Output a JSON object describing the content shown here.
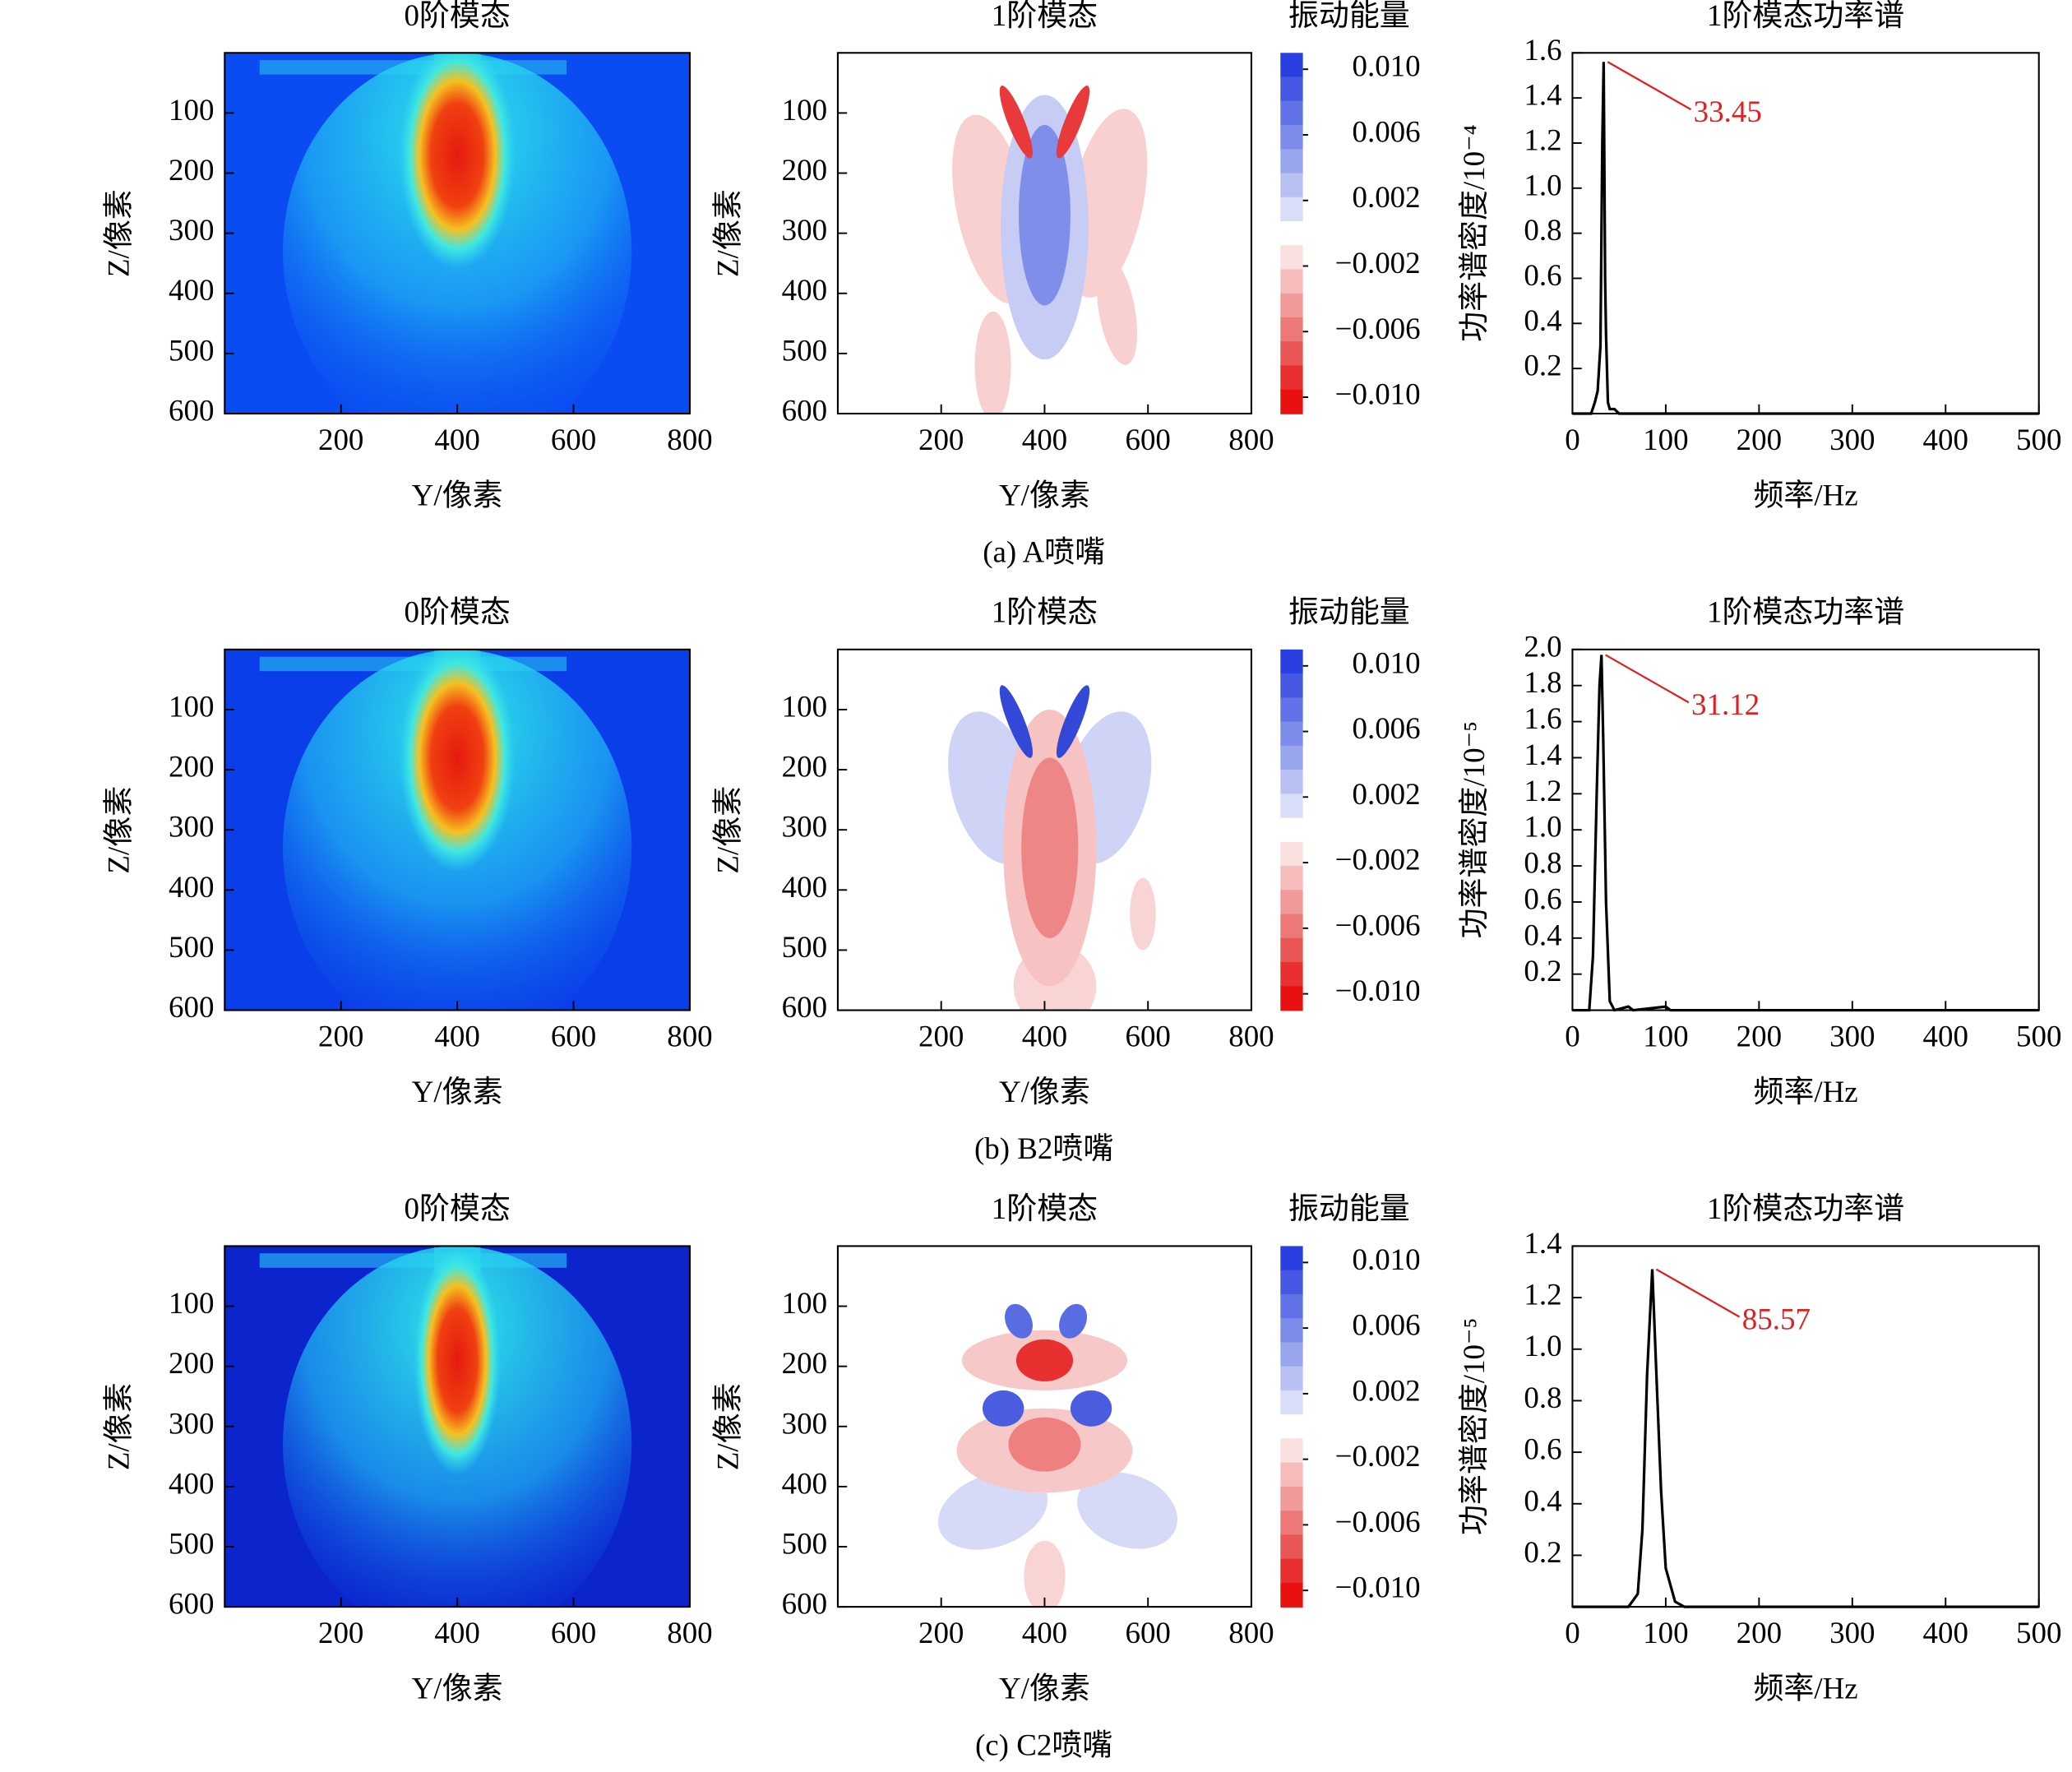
{
  "captions": [
    "(a) A喷嘴",
    "(b) B2喷嘴",
    "(c) C2喷嘴"
  ],
  "chart_data": [
    {
      "type": "heatmap",
      "colormap": "jet",
      "title": "0阶模态",
      "x_label": "Y/像素",
      "y_label": "Z/像素",
      "xlim": [
        0,
        800
      ],
      "ylim": [
        0,
        600
      ],
      "y_inverted": true,
      "xticks": [
        200,
        400,
        600,
        800
      ],
      "yticks": [
        100,
        200,
        300,
        400,
        500,
        600
      ]
    },
    {
      "type": "heatmap",
      "colormap": "bwr",
      "title": "1阶模态",
      "x_label": "Y/像素",
      "y_label": "Z/像素",
      "xlim": [
        0,
        800
      ],
      "ylim": [
        0,
        600
      ],
      "y_inverted": true,
      "xticks": [
        200,
        400,
        600,
        800
      ],
      "yticks": [
        100,
        200,
        300,
        400,
        500,
        600
      ],
      "colorbar_title": "振动能量",
      "colorbar_lim": [
        -0.011,
        0.011
      ],
      "colorbar_ticks": [
        {
          "value": 0.01,
          "label": "0.010"
        },
        0.006,
        0.002,
        {
          "value": -0.002,
          "label": "−0.002"
        },
        {
          "value": -0.006,
          "label": "−0.006"
        },
        {
          "value": -0.01,
          "label": "−0.010"
        }
      ]
    },
    {
      "type": "line",
      "title": "1阶模态功率谱",
      "x_label": "频率/Hz",
      "y_label": "功率谱密度/10⁻⁴",
      "color": "#000000",
      "x": [
        0,
        20,
        24,
        27,
        30,
        32,
        33.45,
        35,
        36,
        38,
        40,
        45,
        50,
        100,
        500
      ],
      "values": [
        0,
        0,
        0.05,
        0.1,
        0.3,
        1.2,
        1.56,
        0.6,
        0.35,
        0.05,
        0.02,
        0.02,
        0,
        0,
        0
      ],
      "xlim": [
        0,
        500
      ],
      "ylim": [
        0,
        1.6
      ],
      "xticks": [
        0,
        100,
        200,
        300,
        400,
        500
      ],
      "yticks": [
        0.2,
        0.4,
        0.6,
        0.8,
        {
          "value": 1.0,
          "label": "1.0"
        },
        1.2,
        1.4,
        1.6
      ],
      "annotation": {
        "x": 33.45,
        "y": 1.56,
        "color": "#e02020"
      }
    },
    {
      "type": "heatmap",
      "colormap": "jet",
      "title": "0阶模态",
      "x_label": "Y/像素",
      "y_label": "Z/像素",
      "xlim": [
        0,
        800
      ],
      "ylim": [
        0,
        600
      ],
      "y_inverted": true,
      "xticks": [
        200,
        400,
        600,
        800
      ],
      "yticks": [
        100,
        200,
        300,
        400,
        500,
        600
      ]
    },
    {
      "type": "heatmap",
      "colormap": "bwr",
      "title": "1阶模态",
      "x_label": "Y/像素",
      "y_label": "Z/像素",
      "xlim": [
        0,
        800
      ],
      "ylim": [
        0,
        600
      ],
      "y_inverted": true,
      "xticks": [
        200,
        400,
        600,
        800
      ],
      "yticks": [
        100,
        200,
        300,
        400,
        500,
        600
      ],
      "colorbar_title": "振动能量",
      "colorbar_lim": [
        -0.011,
        0.011
      ],
      "colorbar_ticks": [
        {
          "value": 0.01,
          "label": "0.010"
        },
        0.006,
        0.002,
        {
          "value": -0.002,
          "label": "−0.002"
        },
        {
          "value": -0.006,
          "label": "−0.006"
        },
        {
          "value": -0.01,
          "label": "−0.010"
        }
      ]
    },
    {
      "type": "line",
      "title": "1阶模态功率谱",
      "x_label": "频率/Hz",
      "y_label": "功率谱密度/10⁻⁵",
      "color": "#000000",
      "x": [
        0,
        18,
        22,
        26,
        29,
        31.12,
        33,
        36,
        40,
        45,
        60,
        65,
        100,
        105,
        500
      ],
      "values": [
        0,
        0,
        0.3,
        1.2,
        1.8,
        1.97,
        1.5,
        0.6,
        0.05,
        0,
        0.02,
        0,
        0.02,
        0,
        0
      ],
      "xlim": [
        0,
        500
      ],
      "ylim": [
        0,
        2.0
      ],
      "xticks": [
        0,
        100,
        200,
        300,
        400,
        500
      ],
      "yticks": [
        0.2,
        0.4,
        0.6,
        0.8,
        {
          "value": 1.0,
          "label": "1.0"
        },
        1.2,
        1.4,
        1.6,
        1.8,
        {
          "value": 2.0,
          "label": "2.0"
        }
      ],
      "annotation": {
        "x": 31.12,
        "y": 1.97,
        "color": "#e02020"
      }
    },
    {
      "type": "heatmap",
      "colormap": "jet",
      "title": "0阶模态",
      "x_label": "Y/像素",
      "y_label": "Z/像素",
      "xlim": [
        0,
        800
      ],
      "ylim": [
        0,
        600
      ],
      "y_inverted": true,
      "xticks": [
        200,
        400,
        600,
        800
      ],
      "yticks": [
        100,
        200,
        300,
        400,
        500,
        600
      ]
    },
    {
      "type": "heatmap",
      "colormap": "bwr",
      "title": "1阶模态",
      "x_label": "Y/像素",
      "y_label": "Z/像素",
      "xlim": [
        0,
        800
      ],
      "ylim": [
        0,
        600
      ],
      "y_inverted": true,
      "xticks": [
        200,
        400,
        600,
        800
      ],
      "yticks": [
        100,
        200,
        300,
        400,
        500,
        600
      ],
      "colorbar_title": "振动能量",
      "colorbar_lim": [
        -0.011,
        0.011
      ],
      "colorbar_ticks": [
        {
          "value": 0.01,
          "label": "0.010"
        },
        0.006,
        0.002,
        {
          "value": -0.002,
          "label": "−0.002"
        },
        {
          "value": -0.006,
          "label": "−0.006"
        },
        {
          "value": -0.01,
          "label": "−0.010"
        }
      ]
    },
    {
      "type": "line",
      "title": "1阶模态功率谱",
      "x_label": "频率/Hz",
      "y_label": "功率谱密度/10⁻⁵",
      "color": "#000000",
      "x": [
        0,
        60,
        70,
        75,
        80,
        85.57,
        90,
        95,
        100,
        110,
        120,
        500
      ],
      "values": [
        0,
        0,
        0.05,
        0.3,
        0.9,
        1.31,
        0.9,
        0.45,
        0.15,
        0.02,
        0,
        0
      ],
      "xlim": [
        0,
        500
      ],
      "ylim": [
        0,
        1.4
      ],
      "xticks": [
        0,
        100,
        200,
        300,
        400,
        500
      ],
      "yticks": [
        0.2,
        0.4,
        0.6,
        0.8,
        {
          "value": 1.0,
          "label": "1.0"
        },
        1.2,
        1.4
      ],
      "annotation": {
        "x": 85.57,
        "y": 1.31,
        "color": "#e02020"
      }
    }
  ]
}
